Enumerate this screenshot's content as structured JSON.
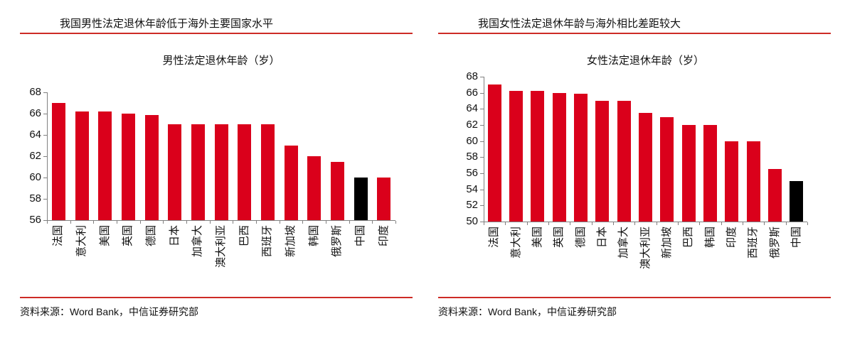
{
  "colors": {
    "bar_red": "#DA001B",
    "bar_black": "#000000",
    "rule_red": "#CD2B26",
    "axis_gray": "#808080"
  },
  "figure": {
    "panels": [
      {
        "header": "我国男性法定退休年龄低于海外主要国家水平",
        "source": "资料来源：Word Bank，中信证券研究部"
      },
      {
        "header": "我国女性法定退休年龄与海外相比差距较大",
        "source": "资料来源：Word Bank，中信证券研究部"
      }
    ]
  },
  "chart_data": [
    {
      "type": "bar",
      "title": "男性法定退休年龄（岁）",
      "categories": [
        "法国",
        "意大利",
        "美国",
        "英国",
        "德国",
        "日本",
        "加拿大",
        "澳大利亚",
        "巴西",
        "西班牙",
        "新加坡",
        "韩国",
        "俄罗斯",
        "中国",
        "印度"
      ],
      "values": [
        67,
        66.2,
        66.2,
        66,
        65.9,
        65,
        65,
        65,
        65,
        65,
        63,
        62,
        61.5,
        60,
        60
      ],
      "highlight_index": 13,
      "highlight_category": "中国",
      "xlabel": "",
      "ylabel": "",
      "ylim": [
        56,
        68
      ],
      "ytick_step": 2,
      "grid": false,
      "legend": "none"
    },
    {
      "type": "bar",
      "title": "女性法定退休年龄（岁）",
      "categories": [
        "法国",
        "意大利",
        "美国",
        "英国",
        "德国",
        "日本",
        "加拿大",
        "澳大利亚",
        "新加坡",
        "巴西",
        "韩国",
        "印度",
        "西班牙",
        "俄罗斯",
        "中国"
      ],
      "values": [
        67,
        66.2,
        66.2,
        66,
        65.9,
        65,
        65,
        63.5,
        63,
        62,
        62,
        60,
        60,
        56.5,
        55
      ],
      "highlight_index": 14,
      "highlight_category": "中国",
      "xlabel": "",
      "ylabel": "",
      "ylim": [
        50,
        68
      ],
      "ytick_step": 2,
      "grid": false,
      "legend": "none"
    }
  ]
}
